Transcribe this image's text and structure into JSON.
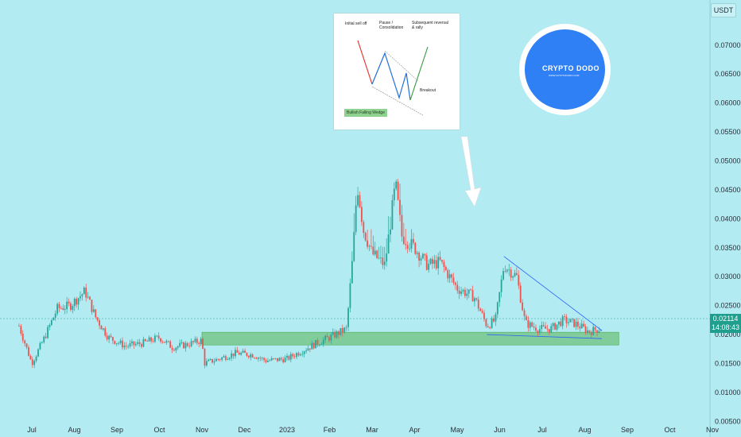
{
  "unit_label": "USDT",
  "price_badge": {
    "price": "0.02114",
    "countdown": "14:08:43"
  },
  "inset": {
    "label_selloff": "Initial sell off",
    "label_pause_1": "Pause /",
    "label_pause_2": "Consolidation",
    "label_reversal_1": "Subsequent reversal",
    "label_reversal_2": "& rally",
    "label_breakout": "Breakout",
    "label_wedge": "Bullish Falling Wedge"
  },
  "logo": {
    "title": "CRYPTO DODO",
    "subtitle": "WWW.CRYPTODODO.COM"
  },
  "colors": {
    "background": "#b3ebf2",
    "bull": "#26a69a",
    "bear": "#ef5350",
    "zone": "#66bb6a",
    "trendline": "#2962ff",
    "badge": "#1e9e8d",
    "logo": "#2f7ff5"
  },
  "chart_data": {
    "type": "candlestick",
    "y_ticks": [
      "0.07000",
      "0.06500",
      "0.06000",
      "0.05500",
      "0.05000",
      "0.04500",
      "0.04000",
      "0.03500",
      "0.03000",
      "0.02500",
      "0.02000",
      "0.01500",
      "0.01000",
      "0.00500"
    ],
    "ylim": [
      0.0034,
      0.0767
    ],
    "x_ticks": [
      "Jul",
      "Aug",
      "Sep",
      "Oct",
      "Nov",
      "Dec",
      "2023",
      "Feb",
      "Mar",
      "Apr",
      "May",
      "Jun",
      "Jul",
      "Aug",
      "Sep",
      "Oct",
      "Nov"
    ],
    "last_price": 0.02114,
    "support_zone": [
      0.0182,
      0.0204
    ],
    "series": [
      {
        "m": -0.3,
        "p": 0.0215
      },
      {
        "m": 0.0,
        "p": 0.015
      },
      {
        "m": 0.3,
        "p": 0.0195
      },
      {
        "m": 0.6,
        "p": 0.0245
      },
      {
        "m": 0.9,
        "p": 0.025
      },
      {
        "m": 1.25,
        "p": 0.0275
      },
      {
        "m": 1.5,
        "p": 0.023
      },
      {
        "m": 1.8,
        "p": 0.0195
      },
      {
        "m": 2.2,
        "p": 0.018
      },
      {
        "m": 2.6,
        "p": 0.0185
      },
      {
        "m": 3.0,
        "p": 0.0195
      },
      {
        "m": 3.3,
        "p": 0.0178
      },
      {
        "m": 3.6,
        "p": 0.0182
      },
      {
        "m": 4.0,
        "p": 0.019
      },
      {
        "m": 4.05,
        "p": 0.015
      },
      {
        "m": 4.4,
        "p": 0.0158
      },
      {
        "m": 4.8,
        "p": 0.0168
      },
      {
        "m": 5.2,
        "p": 0.0165
      },
      {
        "m": 5.5,
        "p": 0.0155
      },
      {
        "m": 6.0,
        "p": 0.0158
      },
      {
        "m": 6.3,
        "p": 0.017
      },
      {
        "m": 6.7,
        "p": 0.0185
      },
      {
        "m": 7.0,
        "p": 0.0195
      },
      {
        "m": 7.4,
        "p": 0.021
      },
      {
        "m": 7.55,
        "p": 0.034
      },
      {
        "m": 7.65,
        "p": 0.046
      },
      {
        "m": 7.8,
        "p": 0.038
      },
      {
        "m": 8.0,
        "p": 0.034
      },
      {
        "m": 8.3,
        "p": 0.032
      },
      {
        "m": 8.55,
        "p": 0.046
      },
      {
        "m": 8.7,
        "p": 0.037
      },
      {
        "m": 9.0,
        "p": 0.035
      },
      {
        "m": 9.3,
        "p": 0.032
      },
      {
        "m": 9.6,
        "p": 0.0325
      },
      {
        "m": 10.0,
        "p": 0.028
      },
      {
        "m": 10.4,
        "p": 0.0265
      },
      {
        "m": 10.7,
        "p": 0.0215
      },
      {
        "m": 10.9,
        "p": 0.0225
      },
      {
        "m": 11.1,
        "p": 0.032
      },
      {
        "m": 11.4,
        "p": 0.03
      },
      {
        "m": 11.6,
        "p": 0.022
      },
      {
        "m": 11.9,
        "p": 0.021
      },
      {
        "m": 12.2,
        "p": 0.021
      },
      {
        "m": 12.5,
        "p": 0.0225
      },
      {
        "m": 12.8,
        "p": 0.0218
      },
      {
        "m": 13.1,
        "p": 0.0205
      },
      {
        "m": 13.4,
        "p": 0.02114
      }
    ]
  }
}
